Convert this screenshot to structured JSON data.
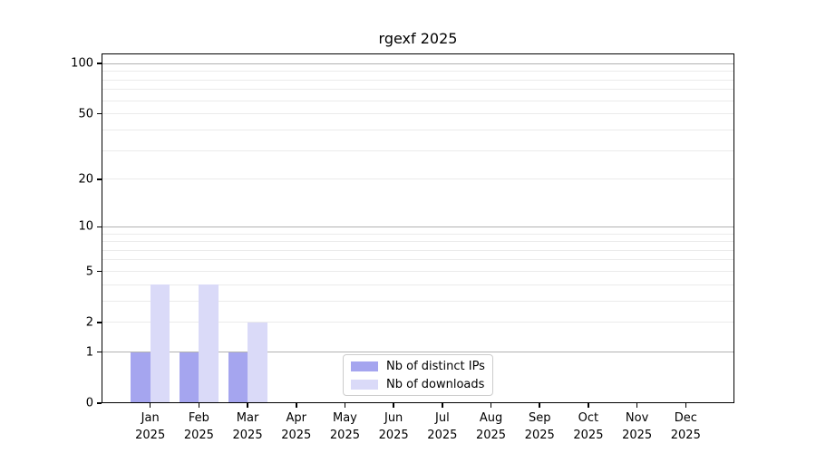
{
  "chart_data": {
    "type": "bar",
    "title": "rgexf 2025",
    "categories": [
      "Jan 2025",
      "Feb 2025",
      "Mar 2025",
      "Apr 2025",
      "May 2025",
      "Jun 2025",
      "Jul 2025",
      "Aug 2025",
      "Sep 2025",
      "Oct 2025",
      "Nov 2025",
      "Dec 2025"
    ],
    "x_tick_line1": [
      "Jan",
      "Feb",
      "Mar",
      "Apr",
      "May",
      "Jun",
      "Jul",
      "Aug",
      "Sep",
      "Oct",
      "Nov",
      "Dec"
    ],
    "x_tick_line2": "2025",
    "series": [
      {
        "name": "Nb of distinct IPs",
        "color": "#a5a5ef",
        "values": [
          1,
          1,
          1,
          0,
          0,
          0,
          0,
          0,
          0,
          0,
          0,
          0
        ]
      },
      {
        "name": "Nb of downloads",
        "color": "#dadaf8",
        "values": [
          4,
          4,
          2,
          0,
          0,
          0,
          0,
          0,
          0,
          0,
          0,
          0
        ]
      }
    ],
    "y_axis": {
      "scale": "log1p",
      "ylim": [
        0,
        115
      ],
      "tick_values": [
        0,
        1,
        2,
        5,
        10,
        20,
        50,
        100
      ],
      "tick_labels": [
        "0",
        "1",
        "2",
        "5",
        "10",
        "20",
        "50",
        "100"
      ],
      "major_gridlines": [
        1,
        10,
        100
      ],
      "minor_gridlines": [
        2,
        3,
        4,
        5,
        6,
        7,
        8,
        9,
        20,
        30,
        40,
        50,
        60,
        70,
        80,
        90
      ]
    },
    "legend": {
      "position": "lower center",
      "entries": [
        "Nb of distinct IPs",
        "Nb of downloads"
      ]
    },
    "colors": {
      "major_grid": "#b2b2b2",
      "minor_grid": "#ebebeb",
      "axis": "#000000",
      "legend_border": "#cccccc",
      "background": "#ffffff"
    }
  }
}
